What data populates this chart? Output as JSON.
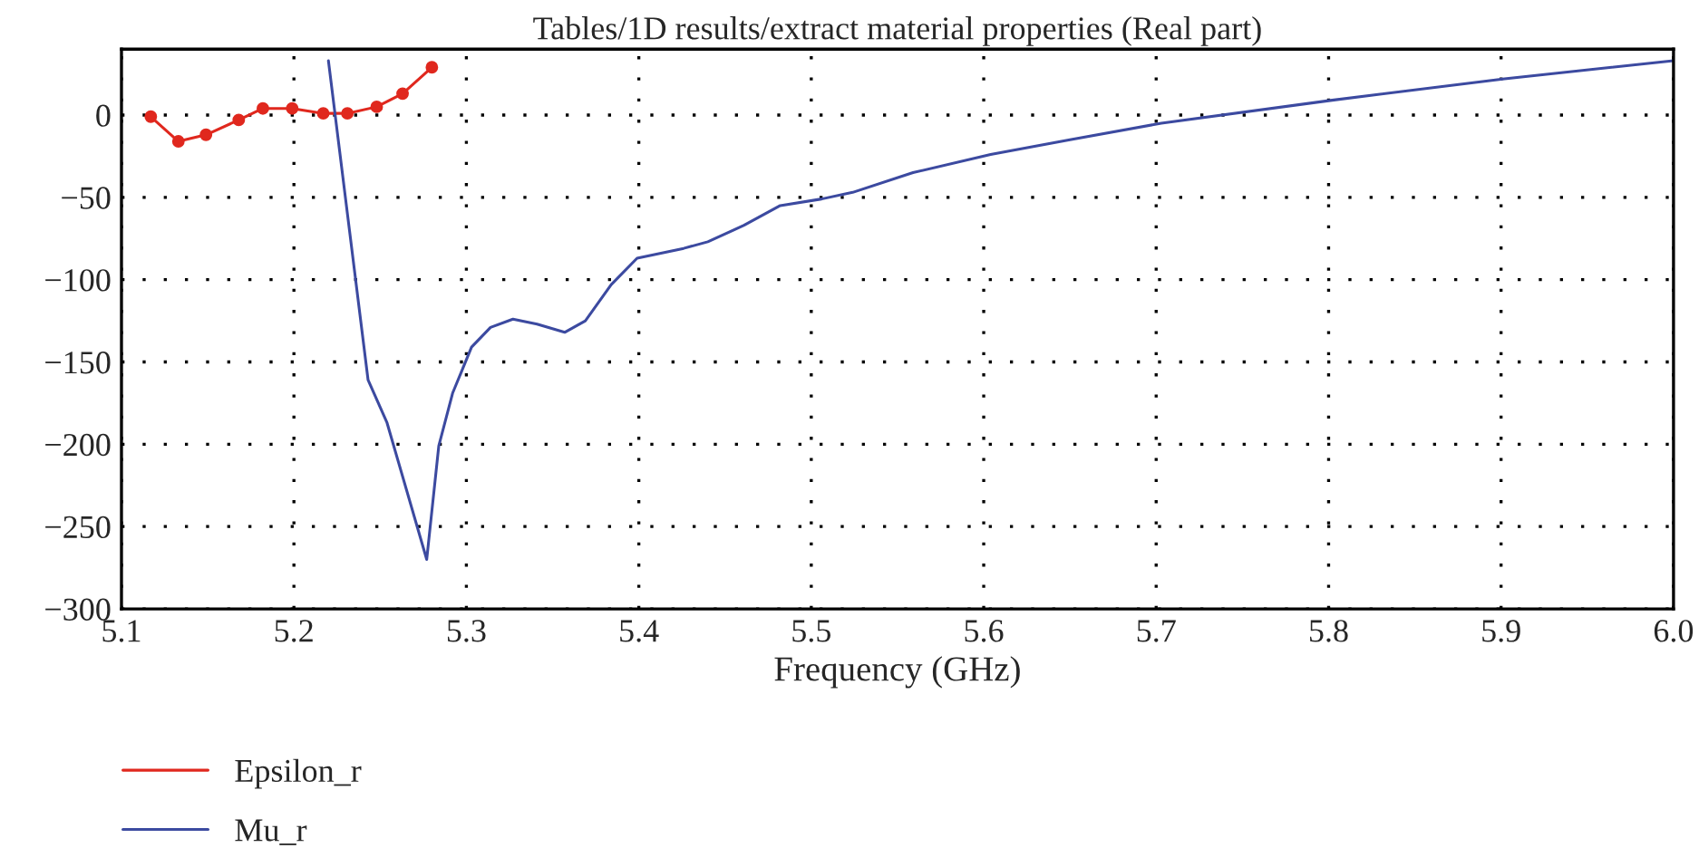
{
  "chart_data": {
    "type": "line",
    "title": "Tables/1D results/extract material properties (Real part)",
    "xlabel": "Frequency (GHz)",
    "xlim": [
      5.1,
      6.0
    ],
    "xticks": [
      5.1,
      5.2,
      5.3,
      5.4,
      5.5,
      5.6,
      5.7,
      5.8,
      5.9,
      {
        "value": 6.0,
        "label": "6.0"
      }
    ],
    "ylim": [
      -300,
      40
    ],
    "yticks": [
      {
        "value": -300,
        "label": "−300"
      },
      {
        "value": -250,
        "label": "−250"
      },
      {
        "value": -200,
        "label": "−200"
      },
      {
        "value": -150,
        "label": "−150"
      },
      {
        "value": -100,
        "label": "−100"
      },
      {
        "value": -50,
        "label": "−50"
      },
      0
    ],
    "grid": true,
    "legend": "bottom left",
    "series": [
      {
        "name": "Epsilon_r",
        "color": "#e0281e",
        "marker": "circle",
        "x": [
          5.117,
          5.133,
          5.149,
          5.168,
          5.182,
          5.199,
          5.217,
          5.231,
          5.248,
          5.263,
          5.28
        ],
        "values": [
          -1,
          -16,
          -12,
          -3,
          4,
          4,
          1,
          1,
          5,
          13,
          29
        ]
      },
      {
        "name": "Mu_r",
        "color": "#3c4aa0",
        "x": [
          5.22,
          5.243,
          5.254,
          5.277,
          5.284,
          5.292,
          5.303,
          5.314,
          5.327,
          5.341,
          5.357,
          5.369,
          5.384,
          5.399,
          5.426,
          5.44,
          5.461,
          5.482,
          5.506,
          5.524,
          5.559,
          5.604,
          5.65,
          5.703,
          5.802,
          5.902,
          6.0
        ],
        "values": [
          33,
          -161,
          -187,
          -270,
          -201,
          -169,
          -141,
          -129,
          -124,
          -127,
          -132,
          -125,
          -103,
          -87,
          -81,
          -77,
          -67,
          -55,
          -51,
          -47,
          -35,
          -24,
          -15,
          -5,
          9,
          22,
          33
        ]
      }
    ]
  }
}
